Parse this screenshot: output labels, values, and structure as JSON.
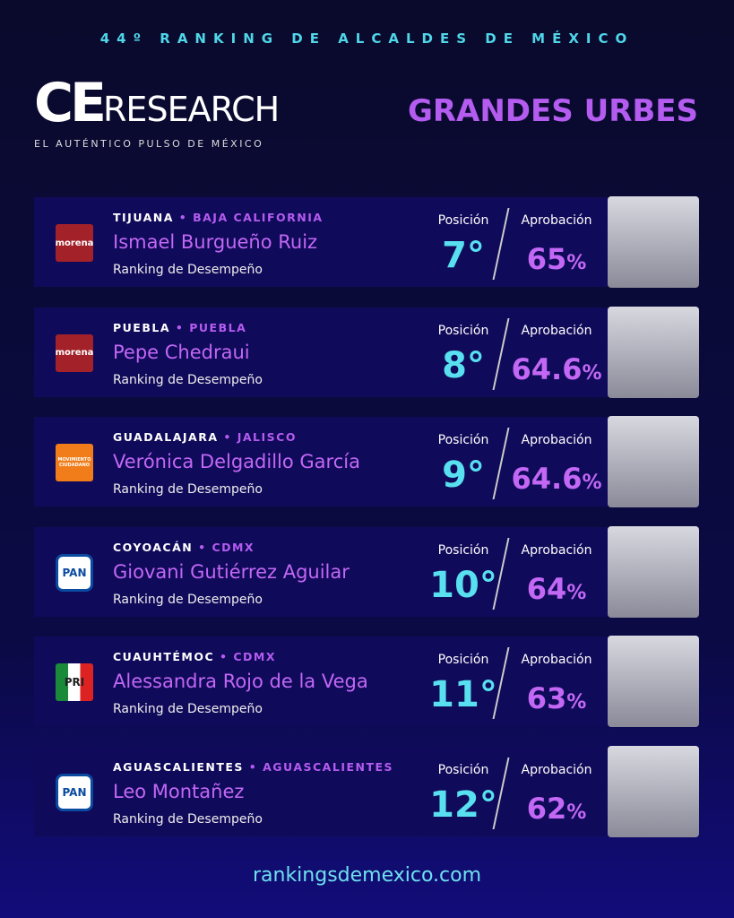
{
  "header": {
    "kicker": "44º RANKING DE ALCALDES DE MÉXICO",
    "brand_bold": "CE",
    "brand_rest": "RESEARCH",
    "tagline": "EL AUTÉNTICO PULSO DE MÉXICO",
    "section": "GRANDES URBES"
  },
  "labels": {
    "position": "Posición",
    "approval": "Aprobación",
    "subtitle": "Ranking de Desempeño"
  },
  "rows": [
    {
      "city": "TIJUANA",
      "state": "BAJA CALIFORNIA",
      "name": "Ismael Burgueño Ruiz",
      "party": "morena",
      "position": 7,
      "position_unit": "°",
      "approval": 65,
      "approval_unit": "%"
    },
    {
      "city": "PUEBLA",
      "state": "PUEBLA",
      "name": "Pepe Chedraui",
      "party": "morena",
      "position": 8,
      "position_unit": "°",
      "approval": 64.6,
      "approval_unit": "%"
    },
    {
      "city": "GUADALAJARA",
      "state": "JALISCO",
      "name": "Verónica Delgadillo García",
      "party": "MOVIMIENTO CIUDADANO",
      "position": 9,
      "position_unit": "°",
      "approval": 64.6,
      "approval_unit": "%"
    },
    {
      "city": "COYOACÁN",
      "state": "CDMX",
      "name": "Giovani Gutiérrez Aguilar",
      "party": "PAN",
      "position": 10,
      "position_unit": "°",
      "approval": 64,
      "approval_unit": "%"
    },
    {
      "city": "CUAUHTÉMOC",
      "state": "CDMX",
      "name": "Alessandra Rojo de la Vega",
      "party": "PRI",
      "position": 11,
      "position_unit": "°",
      "approval": 63,
      "approval_unit": "%"
    },
    {
      "city": "AGUASCALIENTES",
      "state": "AGUASCALIENTES",
      "name": "Leo Montañez",
      "party": "PAN",
      "position": 12,
      "position_unit": "°",
      "approval": 62,
      "approval_unit": "%"
    }
  ],
  "footer": {
    "url": "rankingsdemexico.com"
  }
}
